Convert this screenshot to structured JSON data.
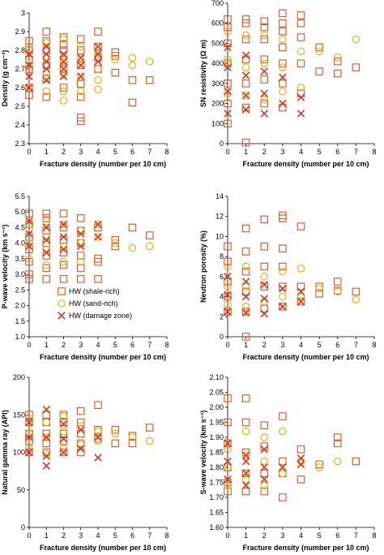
{
  "series_styles": {
    "HW (shale-rich)": {
      "marker": "square",
      "color": "#d9541e"
    },
    "HW (sand-rich)": {
      "marker": "circle",
      "color": "#f0a800"
    },
    "HW (damage zone)": {
      "marker": "x",
      "color": "#e0331a"
    }
  },
  "chart_data": [
    {
      "id": "density",
      "type": "scatter",
      "xlabel": "Fracture density (number per 10 cm)",
      "ylabel": "Density (g cm⁻³)",
      "xlim": [
        0,
        8
      ],
      "ylim": [
        2.3,
        3.0
      ],
      "xticks": [
        0,
        1,
        2,
        3,
        4,
        5,
        6,
        7,
        8
      ],
      "yticks": [
        2.3,
        2.4,
        2.5,
        2.6,
        2.7,
        2.8,
        2.9,
        3.0
      ],
      "ytick_labels": [
        "2.3",
        "2.4",
        "2.5",
        "2.6",
        "2.7",
        "2.8",
        "2.9",
        "3"
      ],
      "series": [
        {
          "name": "HW (shale-rich)",
          "x": [
            0,
            0,
            0,
            0,
            0,
            0,
            1,
            1,
            1,
            1,
            1,
            1,
            2,
            2,
            2,
            2,
            2,
            2,
            3,
            3,
            3,
            3,
            3,
            3,
            3,
            4,
            4,
            4,
            4,
            5,
            5,
            5,
            6,
            6,
            7
          ],
          "y": [
            2.56,
            2.6,
            2.7,
            2.75,
            2.8,
            2.85,
            2.55,
            2.65,
            2.72,
            2.8,
            2.85,
            2.9,
            2.6,
            2.7,
            2.75,
            2.8,
            2.83,
            2.87,
            2.42,
            2.44,
            2.55,
            2.62,
            2.72,
            2.8,
            2.86,
            2.7,
            2.76,
            2.82,
            2.9,
            2.68,
            2.77,
            2.79,
            2.52,
            2.64,
            2.64
          ]
        },
        {
          "name": "HW (sand-rich)",
          "x": [
            0,
            0,
            0,
            0,
            1,
            1,
            1,
            1,
            2,
            2,
            2,
            2,
            2,
            3,
            3,
            3,
            3,
            4,
            4,
            4,
            4,
            5,
            6,
            6,
            7
          ],
          "y": [
            2.6,
            2.68,
            2.74,
            2.82,
            2.58,
            2.68,
            2.76,
            2.84,
            2.53,
            2.58,
            2.67,
            2.74,
            2.86,
            2.58,
            2.66,
            2.76,
            2.82,
            2.59,
            2.64,
            2.7,
            2.78,
            2.75,
            2.72,
            2.76,
            2.74
          ]
        },
        {
          "name": "HW (damage zone)",
          "x": [
            0,
            0,
            0,
            0,
            1,
            1,
            1,
            1,
            1,
            2,
            2,
            2,
            2,
            3,
            3,
            3,
            4,
            4,
            4
          ],
          "y": [
            2.6,
            2.66,
            2.72,
            2.78,
            2.64,
            2.7,
            2.74,
            2.78,
            2.82,
            2.66,
            2.7,
            2.74,
            2.78,
            2.66,
            2.72,
            2.76,
            2.74,
            2.78,
            2.82
          ]
        }
      ]
    },
    {
      "id": "resistivity",
      "type": "scatter",
      "xlabel": "Fracture density (number per 10 cm)",
      "ylabel": "SN resistivity (Ω m)",
      "xlim": [
        0,
        8
      ],
      "ylim": [
        0,
        700
      ],
      "xticks": [
        0,
        1,
        2,
        3,
        4,
        5,
        6,
        7,
        8
      ],
      "yticks": [
        0,
        100,
        200,
        300,
        400,
        500,
        600,
        700
      ],
      "ytick_labels": [
        "0",
        "100",
        "200",
        "300",
        "400",
        "500",
        "600",
        "700"
      ],
      "series": [
        {
          "name": "HW (shale-rich)",
          "x": [
            0,
            0,
            0,
            0,
            0,
            0,
            0,
            1,
            1,
            1,
            1,
            1,
            1,
            1,
            2,
            2,
            2,
            2,
            2,
            2,
            3,
            3,
            3,
            3,
            3,
            3,
            3,
            4,
            4,
            4,
            4,
            4,
            5,
            5,
            6,
            6,
            7
          ],
          "y": [
            100,
            200,
            300,
            400,
            500,
            580,
            620,
            5,
            180,
            300,
            420,
            520,
            600,
            620,
            200,
            320,
            420,
            520,
            580,
            610,
            180,
            300,
            400,
            480,
            560,
            600,
            650,
            250,
            400,
            530,
            600,
            640,
            360,
            480,
            350,
            410,
            380
          ]
        },
        {
          "name": "HW (sand-rich)",
          "x": [
            0,
            0,
            0,
            1,
            1,
            1,
            2,
            2,
            2,
            3,
            3,
            3,
            4,
            4,
            5,
            6,
            7
          ],
          "y": [
            250,
            420,
            560,
            240,
            380,
            540,
            220,
            400,
            540,
            260,
            380,
            520,
            280,
            460,
            460,
            430,
            520
          ]
        },
        {
          "name": "HW (damage zone)",
          "x": [
            0,
            0,
            0,
            0,
            1,
            1,
            1,
            1,
            2,
            2,
            2,
            3,
            3,
            4,
            4
          ],
          "y": [
            150,
            260,
            380,
            480,
            170,
            240,
            340,
            440,
            150,
            250,
            360,
            200,
            330,
            150,
            230
          ]
        }
      ]
    },
    {
      "id": "pwave",
      "type": "scatter",
      "xlabel": "Fracture density (number per 10 cm)",
      "ylabel": "P-wave velocity (km s⁻¹)",
      "xlim": [
        0,
        8
      ],
      "ylim": [
        1.0,
        5.5
      ],
      "xticks": [
        0,
        1,
        2,
        3,
        4,
        5,
        6,
        7,
        8
      ],
      "yticks": [
        1.0,
        1.5,
        2.0,
        2.5,
        3.0,
        3.5,
        4.0,
        4.5,
        5.0,
        5.5
      ],
      "ytick_labels": [
        "1.0",
        "1.5",
        "2.0",
        "2.5",
        "3.0",
        "3.5",
        "4.0",
        "4.5",
        "5.0",
        "5.5"
      ],
      "series": [
        {
          "name": "HW (shale-rich)",
          "x": [
            0,
            0,
            0,
            0,
            0,
            0,
            0,
            1,
            1,
            1,
            1,
            1,
            1,
            1,
            2,
            2,
            2,
            2,
            2,
            2,
            3,
            3,
            3,
            3,
            3,
            3,
            4,
            4,
            4,
            4,
            5,
            5,
            6,
            7
          ],
          "y": [
            2.85,
            3.0,
            3.4,
            3.8,
            4.2,
            4.6,
            4.95,
            2.85,
            3.2,
            3.6,
            4.0,
            4.4,
            4.8,
            4.95,
            2.85,
            3.3,
            3.7,
            4.1,
            4.5,
            4.95,
            2.85,
            3.2,
            3.6,
            4.0,
            4.4,
            4.8,
            2.85,
            3.4,
            3.5,
            4.5,
            3.9,
            4.1,
            4.5,
            4.25
          ]
        },
        {
          "name": "HW (sand-rich)",
          "x": [
            0,
            0,
            0,
            1,
            1,
            1,
            1,
            2,
            2,
            2,
            3,
            3,
            3,
            4,
            4,
            5,
            6,
            7
          ],
          "y": [
            3.5,
            4.0,
            4.6,
            3.3,
            3.8,
            4.2,
            4.7,
            3.4,
            3.9,
            4.6,
            3.4,
            4.0,
            4.4,
            4.2,
            4.6,
            4.0,
            3.85,
            3.9
          ]
        },
        {
          "name": "HW (damage zone)",
          "x": [
            0,
            0,
            0,
            1,
            1,
            1,
            2,
            2,
            2,
            3,
            3,
            4,
            4
          ],
          "y": [
            3.9,
            4.3,
            4.7,
            3.7,
            4.1,
            4.5,
            3.8,
            4.2,
            4.6,
            3.9,
            4.3,
            4.2,
            4.6
          ]
        }
      ],
      "legend": {
        "placement": "lower-right",
        "entries": [
          "HW (shale-rich)",
          "HW (sand-rich)",
          "HW (damage zone)"
        ]
      }
    },
    {
      "id": "neutron",
      "type": "scatter",
      "xlabel": "Fracture density (number per 10 cm)",
      "ylabel": "Neutron porosity (%)",
      "xlim": [
        0,
        8
      ],
      "ylim": [
        0,
        14
      ],
      "xticks": [
        0,
        1,
        2,
        3,
        4,
        5,
        6,
        7,
        8
      ],
      "yticks": [
        0,
        2,
        4,
        6,
        8,
        10,
        12,
        14
      ],
      "ytick_labels": [
        "0",
        "2",
        "4",
        "6",
        "8",
        "10",
        "12",
        "14"
      ],
      "series": [
        {
          "name": "HW (shale-rich)",
          "x": [
            0,
            0,
            0,
            0,
            0,
            1,
            1,
            1,
            1,
            1,
            1,
            2,
            2,
            2,
            2,
            2,
            3,
            3,
            3,
            3,
            3,
            3,
            4,
            4,
            4,
            5,
            5,
            6,
            6,
            7
          ],
          "y": [
            2.5,
            4.0,
            5.5,
            7.5,
            9.0,
            0.0,
            2.5,
            4.5,
            6.5,
            8.5,
            10.8,
            2.8,
            5.0,
            7.0,
            9.0,
            11.7,
            3.0,
            5.0,
            7.0,
            8.8,
            11.8,
            12.1,
            3.5,
            5.0,
            11.0,
            4.3,
            5.0,
            4.6,
            5.5,
            4.5
          ]
        },
        {
          "name": "HW (sand-rich)",
          "x": [
            0,
            0,
            0,
            1,
            1,
            1,
            2,
            2,
            3,
            3,
            4,
            4,
            5,
            6,
            7
          ],
          "y": [
            3.2,
            5.0,
            7.0,
            3.0,
            5.0,
            7.0,
            3.5,
            6.0,
            4.0,
            6.5,
            4.0,
            6.8,
            4.8,
            4.5,
            3.7
          ]
        },
        {
          "name": "HW (damage zone)",
          "x": [
            0,
            0,
            0,
            1,
            1,
            1,
            2,
            2,
            2,
            3,
            3,
            4,
            4
          ],
          "y": [
            2.5,
            4.2,
            6.0,
            2.4,
            4.0,
            5.5,
            2.3,
            3.8,
            5.2,
            3.0,
            4.8,
            3.5,
            4.5
          ]
        }
      ]
    },
    {
      "id": "gamma",
      "type": "scatter",
      "xlabel": "Fracture density (number per 10 cm)",
      "ylabel": "Natural gamma ray (API)",
      "xlim": [
        0,
        8
      ],
      "ylim": [
        0,
        200
      ],
      "xticks": [
        0,
        1,
        2,
        3,
        4,
        5,
        6,
        7,
        8
      ],
      "yticks": [
        0,
        50,
        100,
        150,
        200
      ],
      "ytick_labels": [
        "0",
        "50",
        "100",
        "150",
        "200"
      ],
      "series": [
        {
          "name": "HW (shale-rich)",
          "x": [
            0,
            0,
            0,
            0,
            0,
            1,
            1,
            1,
            1,
            1,
            2,
            2,
            2,
            2,
            2,
            3,
            3,
            3,
            3,
            3,
            4,
            4,
            4,
            5,
            5,
            6,
            6,
            7
          ],
          "y": [
            100,
            115,
            125,
            140,
            150,
            100,
            112,
            125,
            140,
            150,
            100,
            115,
            125,
            140,
            150,
            100,
            112,
            125,
            140,
            155,
            118,
            130,
            163,
            112,
            130,
            112,
            122,
            133
          ]
        },
        {
          "name": "HW (sand-rich)",
          "x": [
            0,
            0,
            0,
            1,
            1,
            1,
            2,
            2,
            2,
            3,
            3,
            4,
            4,
            5,
            6,
            7
          ],
          "y": [
            105,
            125,
            145,
            98,
            120,
            140,
            105,
            128,
            148,
            110,
            135,
            115,
            128,
            125,
            120,
            115
          ]
        },
        {
          "name": "HW (damage zone)",
          "x": [
            0,
            0,
            0,
            1,
            1,
            1,
            1,
            2,
            2,
            2,
            3,
            3,
            4,
            4
          ],
          "y": [
            100,
            120,
            140,
            82,
            95,
            120,
            157,
            100,
            118,
            138,
            105,
            130,
            93,
            120
          ]
        }
      ]
    },
    {
      "id": "swave",
      "type": "scatter",
      "xlabel": "Fracture density (number per 10 cm)",
      "ylabel": "S-wave velocity (km s⁻¹)",
      "xlim": [
        0,
        8
      ],
      "ylim": [
        1.6,
        2.1
      ],
      "xticks": [
        0,
        1,
        2,
        3,
        4,
        5,
        6,
        7,
        8
      ],
      "yticks": [
        1.6,
        1.65,
        1.7,
        1.75,
        1.8,
        1.85,
        1.9,
        1.95,
        2.0,
        2.05,
        2.1
      ],
      "ytick_labels": [
        "1.60",
        "1.65",
        "1.70",
        "1.75",
        "1.80",
        "1.85",
        "1.90",
        "1.95",
        "2.00",
        "2.05",
        "2.10"
      ],
      "series": [
        {
          "name": "HW (shale-rich)",
          "x": [
            0,
            0,
            0,
            0,
            0,
            0,
            1,
            1,
            1,
            1,
            1,
            2,
            2,
            2,
            2,
            3,
            3,
            3,
            3,
            4,
            4,
            5,
            6,
            6,
            7
          ],
          "y": [
            1.72,
            1.75,
            1.8,
            1.88,
            1.95,
            2.03,
            1.72,
            1.78,
            1.85,
            1.95,
            2.03,
            1.72,
            1.78,
            1.87,
            1.94,
            1.7,
            1.78,
            1.82,
            1.97,
            1.76,
            1.86,
            1.81,
            1.88,
            1.9,
            1.82
          ]
        },
        {
          "name": "HW (sand-rich)",
          "x": [
            0,
            0,
            0,
            1,
            1,
            1,
            2,
            2,
            2,
            3,
            3,
            4,
            5,
            6
          ],
          "y": [
            1.74,
            1.8,
            1.86,
            1.76,
            1.84,
            1.92,
            1.74,
            1.82,
            1.9,
            1.78,
            1.92,
            1.82,
            1.8,
            1.82
          ]
        },
        {
          "name": "HW (damage zone)",
          "x": [
            0,
            0,
            0,
            1,
            1,
            1,
            1,
            2,
            2,
            2,
            3,
            4,
            4
          ],
          "y": [
            1.76,
            1.82,
            1.88,
            1.74,
            1.78,
            1.82,
            1.84,
            1.76,
            1.8,
            1.86,
            1.8,
            1.81,
            1.83
          ]
        }
      ]
    }
  ]
}
